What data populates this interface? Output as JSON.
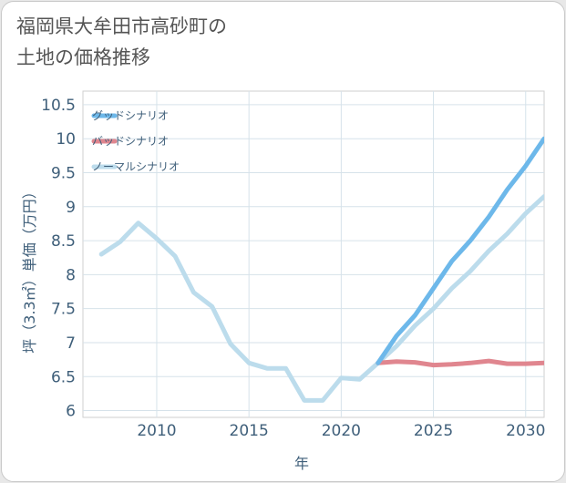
{
  "title": "福岡県大牟田市高砂町の\n土地の価格推移",
  "chart_data": {
    "type": "line",
    "xlabel": "年",
    "ylabel": "坪（3.3㎡）単価（万円）",
    "xlim": [
      2006,
      2031
    ],
    "ylim": [
      5.9,
      10.7
    ],
    "x_ticks": [
      2010,
      2015,
      2020,
      2025,
      2030
    ],
    "y_ticks": [
      6,
      6.5,
      7,
      7.5,
      8,
      8.5,
      9,
      9.5,
      10,
      10.5
    ],
    "x_tick_labels": [
      "2010",
      "2015",
      "2020",
      "2025",
      "2030"
    ],
    "y_tick_labels": [
      "6",
      "6.5",
      "7",
      "7.5",
      "8",
      "8.5",
      "9",
      "9.5",
      "10",
      "10.5"
    ],
    "grid": true,
    "legend_position": "top-left",
    "series": [
      {
        "name": "グッドシナリオ",
        "color": "#6db8ea",
        "x": [
          2022,
          2023,
          2024,
          2025,
          2026,
          2027,
          2028,
          2029,
          2030,
          2031
        ],
        "values": [
          6.7,
          7.1,
          7.4,
          7.8,
          8.2,
          8.5,
          8.85,
          9.25,
          9.6,
          10.0
        ]
      },
      {
        "name": "バッドシナリオ",
        "color": "#e0868f",
        "x": [
          2022,
          2023,
          2024,
          2025,
          2026,
          2027,
          2028,
          2029,
          2030,
          2031
        ],
        "values": [
          6.7,
          6.72,
          6.71,
          6.67,
          6.68,
          6.7,
          6.73,
          6.69,
          6.69,
          6.7
        ]
      },
      {
        "name": "ノーマルシナリオ",
        "color": "#bcdcec",
        "x": [
          2007,
          2008,
          2009,
          2010,
          2011,
          2012,
          2013,
          2014,
          2015,
          2016,
          2017,
          2018,
          2019,
          2020,
          2021,
          2022,
          2023,
          2024,
          2025,
          2026,
          2027,
          2028,
          2029,
          2030,
          2031
        ],
        "values": [
          8.3,
          8.48,
          8.76,
          8.53,
          8.27,
          7.74,
          7.53,
          6.98,
          6.7,
          6.62,
          6.62,
          6.15,
          6.15,
          6.48,
          6.46,
          6.7,
          6.95,
          7.25,
          7.5,
          7.8,
          8.05,
          8.35,
          8.6,
          8.9,
          9.15
        ]
      }
    ]
  }
}
